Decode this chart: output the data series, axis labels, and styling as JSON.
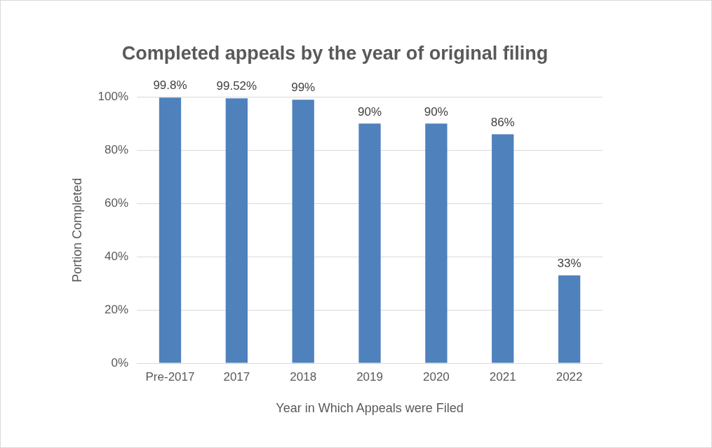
{
  "chart_data": {
    "type": "bar",
    "title": "Completed appeals by the year of original filing",
    "xlabel": "Year in Which Appeals were Filed",
    "ylabel": "Portion Completed",
    "categories": [
      "Pre-2017",
      "2017",
      "2018",
      "2019",
      "2020",
      "2021",
      "2022"
    ],
    "values": [
      99.8,
      99.52,
      99,
      90,
      90,
      86,
      33
    ],
    "value_labels": [
      "99.8%",
      "99.52%",
      "99%",
      "90%",
      "90%",
      "86%",
      "33%"
    ],
    "color": "#4f81bd",
    "ylim": [
      0,
      100
    ],
    "yticks": [
      {
        "value": 0,
        "label": "0%"
      },
      {
        "value": 20,
        "label": "20%"
      },
      {
        "value": 40,
        "label": "40%"
      },
      {
        "value": 60,
        "label": "60%"
      },
      {
        "value": 80,
        "label": "80%"
      },
      {
        "value": 100,
        "label": "100%"
      }
    ],
    "grid": "y"
  }
}
